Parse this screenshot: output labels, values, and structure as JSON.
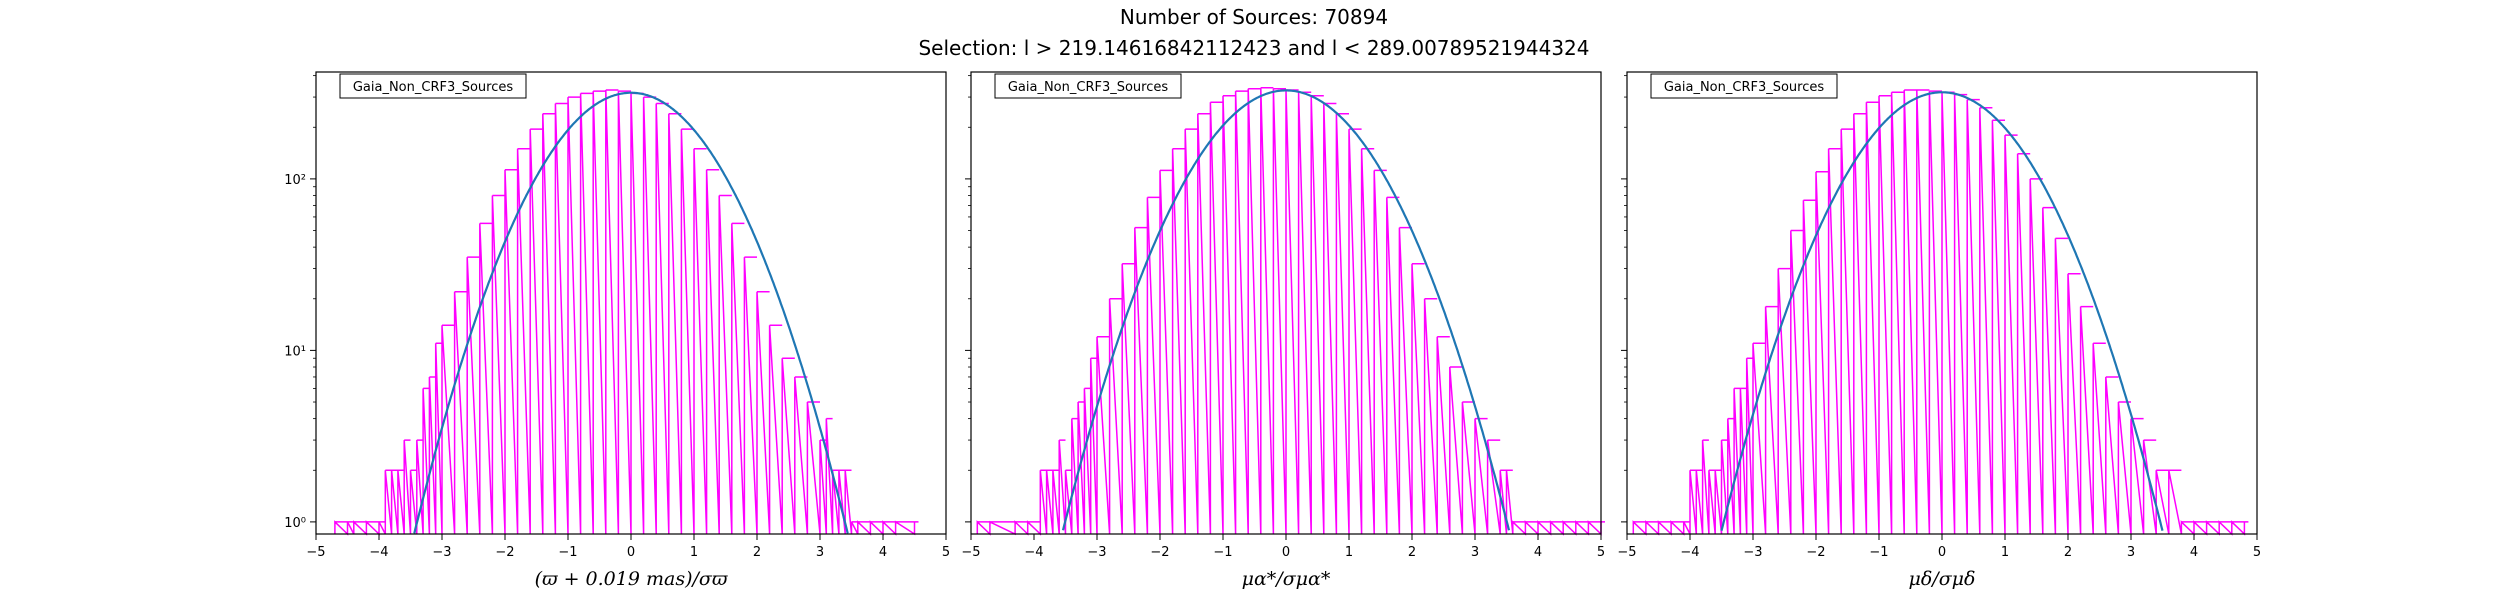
{
  "figure": {
    "title": "Number of Sources: 70894",
    "subtitle": "Selection: l > 219.14616842112423 and l < 289.00789521944324"
  },
  "colors": {
    "histogram": "#ff00ff",
    "fit": "#1f77b4",
    "axes": "#000000"
  },
  "chart_data": [
    {
      "type": "line",
      "title": "",
      "xlabel": "(ϖ + 0.019 mas)/σϖ",
      "ylabel": "",
      "xlim": [
        -5,
        5
      ],
      "ylim": [
        0.85,
        420
      ],
      "yscale": "log",
      "xticks": [
        "−5",
        "−4",
        "−3",
        "−2",
        "−1",
        "0",
        "1",
        "2",
        "3",
        "4",
        "5"
      ],
      "yticks": [
        "10⁰",
        "10¹",
        "10²"
      ],
      "legend": {
        "label": "Gaia_Non_CRF3_Sources",
        "position": "top-left"
      },
      "series": [
        {
          "kind": "histogram",
          "color": "#ff00ff",
          "x": [
            -4.7,
            -4.5,
            -4.4,
            -4.2,
            -4.0,
            -3.9,
            -3.8,
            -3.7,
            -3.6,
            -3.5,
            -3.4,
            -3.3,
            -3.2,
            -3.1,
            -3.0,
            -2.8,
            -2.6,
            -2.4,
            -2.2,
            -2.0,
            -1.8,
            -1.6,
            -1.4,
            -1.2,
            -1.0,
            -0.8,
            -0.6,
            -0.4,
            -0.2,
            0.0,
            0.2,
            0.4,
            0.6,
            0.8,
            1.0,
            1.2,
            1.4,
            1.6,
            1.8,
            2.0,
            2.2,
            2.4,
            2.6,
            2.8,
            3.0,
            3.1,
            3.2,
            3.3,
            3.4,
            3.5,
            3.6,
            3.8,
            4.0,
            4.2,
            4.5
          ],
          "y": [
            1,
            1,
            1,
            1,
            1,
            2,
            2,
            2,
            3,
            2,
            3,
            6,
            7,
            11,
            14,
            22,
            35,
            55,
            80,
            113,
            150,
            195,
            240,
            275,
            300,
            315,
            325,
            330,
            325,
            315,
            300,
            275,
            240,
            195,
            150,
            113,
            80,
            55,
            35,
            22,
            14,
            9,
            7,
            5,
            3,
            4,
            2,
            2,
            2,
            1,
            1,
            1,
            1,
            1,
            1
          ]
        },
        {
          "kind": "gaussian-fit",
          "color": "#1f77b4",
          "amplitude": 318,
          "mean": 0.0,
          "sigma": 1.0
        }
      ]
    },
    {
      "type": "line",
      "title": "",
      "xlabel": "μα*/σμα*",
      "ylabel": "",
      "xlim": [
        -5,
        5
      ],
      "ylim": [
        0.85,
        420
      ],
      "yscale": "log",
      "xticks": [
        "−5",
        "−4",
        "−3",
        "−2",
        "−1",
        "0",
        "1",
        "2",
        "3",
        "4",
        "5"
      ],
      "yticks": [],
      "legend": {
        "label": "Gaia_Non_CRF3_Sources",
        "position": "top-left"
      },
      "series": [
        {
          "kind": "histogram",
          "color": "#ff00ff",
          "x": [
            -4.9,
            -4.7,
            -4.3,
            -4.1,
            -3.9,
            -3.8,
            -3.7,
            -3.6,
            -3.5,
            -3.4,
            -3.3,
            -3.2,
            -3.1,
            -3.0,
            -2.8,
            -2.6,
            -2.4,
            -2.2,
            -2.0,
            -1.8,
            -1.6,
            -1.4,
            -1.2,
            -1.0,
            -0.8,
            -0.6,
            -0.4,
            -0.2,
            0.0,
            0.2,
            0.4,
            0.6,
            0.8,
            1.0,
            1.2,
            1.4,
            1.6,
            1.8,
            2.0,
            2.2,
            2.4,
            2.6,
            2.8,
            3.0,
            3.2,
            3.4,
            3.5,
            3.6,
            3.8,
            4.0,
            4.2,
            4.4,
            4.6,
            4.8,
            5.0
          ],
          "y": [
            1,
            1,
            1,
            1,
            2,
            2,
            2,
            3,
            2,
            4,
            5,
            6,
            9,
            12,
            20,
            32,
            52,
            78,
            112,
            150,
            195,
            240,
            280,
            305,
            325,
            335,
            340,
            335,
            330,
            320,
            305,
            275,
            240,
            195,
            150,
            112,
            78,
            52,
            32,
            20,
            12,
            8,
            5,
            4,
            3,
            2,
            2,
            1,
            1,
            1,
            1,
            1,
            1,
            1,
            1
          ]
        },
        {
          "kind": "gaussian-fit",
          "color": "#1f77b4",
          "amplitude": 328,
          "mean": 0.0,
          "sigma": 1.03
        }
      ]
    },
    {
      "type": "line",
      "title": "",
      "xlabel": "μδ/σμδ",
      "ylabel": "",
      "xlim": [
        -5,
        5
      ],
      "ylim": [
        0.85,
        420
      ],
      "yscale": "log",
      "xticks": [
        "−5",
        "−4",
        "−3",
        "−2",
        "−1",
        "0",
        "1",
        "2",
        "3",
        "4",
        "5"
      ],
      "yticks": [],
      "legend": {
        "label": "Gaia_Non_CRF3_Sources",
        "position": "top-left"
      },
      "series": [
        {
          "kind": "histogram",
          "color": "#ff00ff",
          "x": [
            -4.9,
            -4.7,
            -4.5,
            -4.3,
            -4.1,
            -4.0,
            -3.9,
            -3.8,
            -3.7,
            -3.6,
            -3.5,
            -3.4,
            -3.3,
            -3.2,
            -3.1,
            -3.0,
            -2.8,
            -2.6,
            -2.4,
            -2.2,
            -2.0,
            -1.8,
            -1.6,
            -1.4,
            -1.2,
            -1.0,
            -0.8,
            -0.6,
            -0.4,
            -0.2,
            0.0,
            0.2,
            0.4,
            0.6,
            0.8,
            1.0,
            1.2,
            1.4,
            1.6,
            1.8,
            2.0,
            2.2,
            2.4,
            2.6,
            2.8,
            3.0,
            3.2,
            3.4,
            3.6,
            3.8,
            4.0,
            4.2,
            4.4,
            4.6,
            4.8
          ],
          "y": [
            1,
            1,
            1,
            1,
            1,
            2,
            2,
            3,
            2,
            2,
            3,
            4,
            6,
            6,
            9,
            11,
            18,
            30,
            50,
            75,
            110,
            150,
            195,
            240,
            280,
            305,
            320,
            330,
            330,
            325,
            320,
            310,
            290,
            260,
            220,
            180,
            140,
            100,
            68,
            45,
            28,
            18,
            11,
            7,
            5,
            4,
            3,
            2,
            2,
            1,
            1,
            1,
            1,
            1,
            1
          ]
        },
        {
          "kind": "gaussian-fit",
          "color": "#1f77b4",
          "amplitude": 320,
          "mean": 0.0,
          "sigma": 1.02
        }
      ]
    }
  ]
}
